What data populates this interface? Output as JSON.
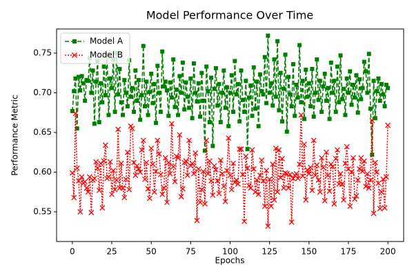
{
  "chart_data": {
    "type": "line",
    "title": "Model Performance Over Time",
    "xlabel": "Epochs",
    "ylabel": "Performance Metric",
    "x": [
      0,
      1,
      2,
      3,
      4,
      5,
      6,
      7,
      8,
      9,
      10,
      11,
      12,
      13,
      14,
      15,
      16,
      17,
      18,
      19,
      20,
      21,
      22,
      23,
      24,
      25,
      26,
      27,
      28,
      29,
      30,
      31,
      32,
      33,
      34,
      35,
      36,
      37,
      38,
      39,
      40,
      41,
      42,
      43,
      44,
      45,
      46,
      47,
      48,
      49,
      50,
      51,
      52,
      53,
      54,
      55,
      56,
      57,
      58,
      59,
      60,
      61,
      62,
      63,
      64,
      65,
      66,
      67,
      68,
      69,
      70,
      71,
      72,
      73,
      74,
      75,
      76,
      77,
      78,
      79,
      80,
      81,
      82,
      83,
      84,
      85,
      86,
      87,
      88,
      89,
      90,
      91,
      92,
      93,
      94,
      95,
      96,
      97,
      98,
      99,
      100,
      101,
      102,
      103,
      104,
      105,
      106,
      107,
      108,
      109,
      110,
      111,
      112,
      113,
      114,
      115,
      116,
      117,
      118,
      119,
      120,
      121,
      122,
      123,
      124,
      125,
      126,
      127,
      128,
      129,
      130,
      131,
      132,
      133,
      134,
      135,
      136,
      137,
      138,
      139,
      140,
      141,
      142,
      143,
      144,
      145,
      146,
      147,
      148,
      149,
      150,
      151,
      152,
      153,
      154,
      155,
      156,
      157,
      158,
      159,
      160,
      161,
      162,
      163,
      164,
      165,
      166,
      167,
      168,
      169,
      170,
      171,
      172,
      173,
      174,
      175,
      176,
      177,
      178,
      179,
      180,
      181,
      182,
      183,
      184,
      185,
      186,
      187,
      188,
      189,
      190,
      191,
      192,
      193,
      194,
      195,
      196,
      197,
      198,
      199,
      200
    ],
    "series": [
      {
        "name": "Model A",
        "color": "#008000",
        "linestyle": "dashed",
        "marker": "square",
        "values": [
          0.677,
          0.702,
          0.718,
          0.655,
          0.72,
          0.703,
          0.721,
          0.712,
          0.69,
          0.716,
          0.715,
          0.744,
          0.7,
          0.728,
          0.661,
          0.714,
          0.74,
          0.663,
          0.712,
          0.688,
          0.733,
          0.697,
          0.748,
          0.672,
          0.718,
          0.706,
          0.742,
          0.676,
          0.75,
          0.698,
          0.73,
          0.688,
          0.672,
          0.716,
          0.7,
          0.683,
          0.741,
          0.695,
          0.706,
          0.676,
          0.728,
          0.69,
          0.716,
          0.666,
          0.697,
          0.759,
          0.683,
          0.714,
          0.672,
          0.701,
          0.724,
          0.687,
          0.711,
          0.662,
          0.734,
          0.7,
          0.676,
          0.752,
          0.708,
          0.714,
          0.703,
          0.671,
          0.713,
          0.694,
          0.742,
          0.682,
          0.704,
          0.672,
          0.721,
          0.7,
          0.738,
          0.679,
          0.713,
          0.695,
          0.681,
          0.718,
          0.668,
          0.737,
          0.7,
          0.689,
          0.712,
          0.67,
          0.725,
          0.69,
          0.627,
          0.733,
          0.702,
          0.663,
          0.719,
          0.633,
          0.705,
          0.731,
          0.684,
          0.711,
          0.663,
          0.7,
          0.728,
          0.681,
          0.707,
          0.658,
          0.7,
          0.722,
          0.676,
          0.74,
          0.698,
          0.711,
          0.664,
          0.728,
          0.691,
          0.676,
          0.715,
          0.629,
          0.694,
          0.709,
          0.671,
          0.732,
          0.68,
          0.714,
          0.658,
          0.723,
          0.702,
          0.698,
          0.745,
          0.687,
          0.772,
          0.7,
          0.712,
          0.684,
          0.742,
          0.695,
          0.765,
          0.678,
          0.725,
          0.664,
          0.705,
          0.748,
          0.651,
          0.72,
          0.698,
          0.683,
          0.736,
          0.671,
          0.71,
          0.694,
          0.76,
          0.688,
          0.715,
          0.667,
          0.729,
          0.695,
          0.712,
          0.683,
          0.73,
          0.67,
          0.7,
          0.742,
          0.691,
          0.715,
          0.676,
          0.708,
          0.724,
          0.69,
          0.706,
          0.667,
          0.738,
          0.7,
          0.715,
          0.676,
          0.733,
          0.688,
          0.747,
          0.692,
          0.705,
          0.672,
          0.718,
          0.7,
          0.727,
          0.685,
          0.71,
          0.694,
          0.722,
          0.675,
          0.717,
          0.692,
          0.706,
          0.739,
          0.727,
          0.7,
          0.749,
          0.68,
          0.622,
          0.715,
          0.668,
          0.702,
          0.718,
          0.69,
          0.711,
          0.698,
          0.683,
          0.71,
          0.706
        ]
      },
      {
        "name": "Model B",
        "color": "#ff0000",
        "linestyle": "dotted",
        "marker": "x",
        "values": [
          0.599,
          0.568,
          0.674,
          0.605,
          0.589,
          0.55,
          0.594,
          0.586,
          0.588,
          0.58,
          0.575,
          0.594,
          0.549,
          0.59,
          0.592,
          0.613,
          0.605,
          0.577,
          0.611,
          0.555,
          0.614,
          0.634,
          0.592,
          0.594,
          0.613,
          0.572,
          0.602,
          0.578,
          0.59,
          0.654,
          0.58,
          0.611,
          0.58,
          0.568,
          0.591,
          0.625,
          0.578,
          0.658,
          0.655,
          0.612,
          0.596,
          0.608,
          0.604,
          0.6,
          0.628,
          0.64,
          0.591,
          0.612,
          0.579,
          0.567,
          0.63,
          0.61,
          0.575,
          0.601,
          0.64,
          0.623,
          0.597,
          0.572,
          0.58,
          0.618,
          0.562,
          0.612,
          0.598,
          0.661,
          0.607,
          0.588,
          0.62,
          0.618,
          0.647,
          0.569,
          0.579,
          0.612,
          0.614,
          0.596,
          0.64,
          0.608,
          0.611,
          0.598,
          0.624,
          0.539,
          0.604,
          0.562,
          0.578,
          0.601,
          0.56,
          0.64,
          0.598,
          0.614,
          0.589,
          0.571,
          0.608,
          0.603,
          0.589,
          0.573,
          0.615,
          0.598,
          0.582,
          0.563,
          0.602,
          0.643,
          0.596,
          0.578,
          0.611,
          0.587,
          0.59,
          0.585,
          0.629,
          0.629,
          0.597,
          0.538,
          0.62,
          0.605,
          0.583,
          0.58,
          0.628,
          0.604,
          0.575,
          0.59,
          0.572,
          0.596,
          0.615,
          0.589,
          0.557,
          0.602,
          0.532,
          0.591,
          0.557,
          0.61,
          0.565,
          0.63,
          0.575,
          0.628,
          0.593,
          0.617,
          0.58,
          0.599,
          0.598,
          0.58,
          0.597,
          0.537,
          0.592,
          0.596,
          0.598,
          0.592,
          0.61,
          0.672,
          0.595,
          0.635,
          0.565,
          0.603,
          0.598,
          0.606,
          0.577,
          0.64,
          0.596,
          0.609,
          0.59,
          0.575,
          0.618,
          0.606,
          0.564,
          0.625,
          0.596,
          0.576,
          0.61,
          0.607,
          0.56,
          0.617,
          0.628,
          0.585,
          0.598,
          0.585,
          0.565,
          0.611,
          0.632,
          0.604,
          0.557,
          0.6,
          0.618,
          0.566,
          0.57,
          0.59,
          0.604,
          0.618,
          0.601,
          0.614,
          0.582,
          0.598,
          0.58,
          0.59,
          0.665,
          0.548,
          0.612,
          0.6,
          0.586,
          0.554,
          0.575,
          0.591,
          0.555,
          0.594,
          0.659
        ]
      }
    ],
    "xlim": [
      -10,
      210
    ],
    "xticks": [
      0,
      25,
      50,
      75,
      100,
      125,
      150,
      175,
      200
    ],
    "ylim": [
      0.5126,
      0.7804
    ],
    "yticks": [
      0.55,
      {
        "value": 0.6,
        "label": "0.60"
      },
      0.65,
      {
        "value": 0.7,
        "label": "0.70"
      },
      0.75
    ],
    "grid": false,
    "legend": "upper left"
  }
}
